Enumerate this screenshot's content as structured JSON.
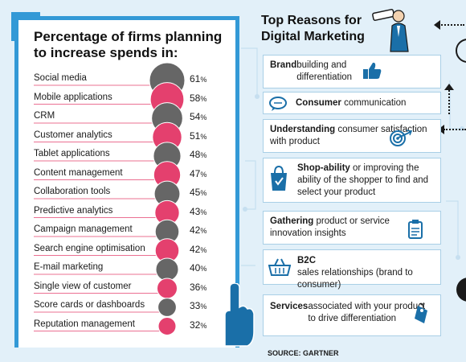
{
  "left": {
    "title_line1": "Percentage of firms planning",
    "title_line2": "to increase spends in:"
  },
  "chart_data": {
    "type": "bar",
    "title": "Percentage of firms planning to increase spends in:",
    "categories": [
      "Social media",
      "Mobile applications",
      "CRM",
      "Customer analytics",
      "Tablet applications",
      "Content management",
      "Collaboration tools",
      "Predictive analytics",
      "Campaign management",
      "Search engine optimisation",
      "E-mail marketing",
      "Single view of customer",
      "Score cards or dashboards",
      "Reputation management"
    ],
    "values": [
      61,
      58,
      54,
      51,
      48,
      47,
      45,
      43,
      42,
      42,
      40,
      36,
      33,
      32
    ],
    "value_suffix": "%",
    "colors": [
      "#666666",
      "#e4406e"
    ],
    "leader_color": "#e4406e"
  },
  "right": {
    "title_line1": "Top Reasons for",
    "title_line2": "Digital Marketing",
    "reasons": [
      {
        "bold": "Brand",
        "rest": " building and differentiation",
        "icon": "thumbs-up-icon"
      },
      {
        "bold": "Consumer",
        "rest": " communication",
        "icon": "chat-bubble-icon"
      },
      {
        "bold": "Understanding",
        "rest": " consumer satisfaction with product",
        "icon": "target-icon"
      },
      {
        "bold": "Shop-ability",
        "rest": " or improving the ability of the shopper to find and select your product",
        "icon": "shopping-bag-icon"
      },
      {
        "bold": "Gathering",
        "rest": " product or service innovation insights",
        "icon": "clipboard-icon"
      },
      {
        "bold": "B2C",
        "rest": " sales relationships (brand to consumer)",
        "icon": "shopping-basket-icon"
      },
      {
        "bold": "Services",
        "rest": " associated with your product to drive differentiation",
        "icon": "price-tag-icon"
      }
    ]
  },
  "source": "SOURCE: GARTNER",
  "colors": {
    "frame": "#3399d6",
    "accent_blue": "#1a6fa8",
    "background": "#e2f0f9"
  }
}
